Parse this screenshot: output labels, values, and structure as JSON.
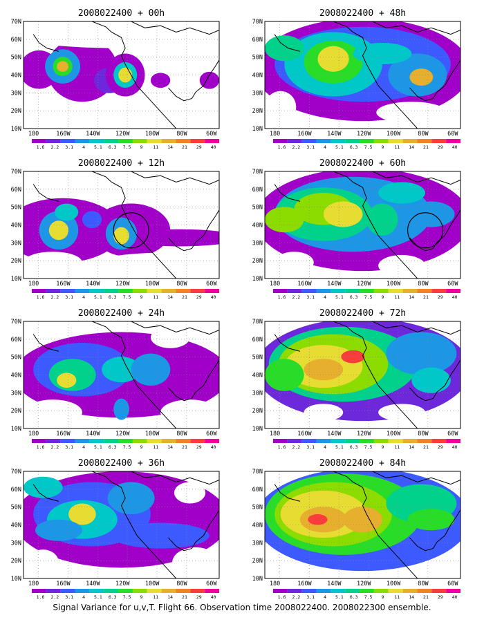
{
  "figure": {
    "footer": "Signal Variance for u,v,T. Flight 66. Observation time 2008022400. 2008022300 ensemble.",
    "y_ticks": [
      "70N",
      "60N",
      "50N",
      "40N",
      "30N",
      "20N",
      "10N"
    ],
    "x_ticks": [
      "180",
      "160W",
      "140W",
      "120W",
      "100W",
      "80W",
      "60W"
    ],
    "colorbar": {
      "labels": [
        "1.6",
        "2.2",
        "3.1",
        "4",
        "5.1",
        "6.3",
        "7.5",
        "9",
        "11",
        "14",
        "21",
        "29",
        "40"
      ],
      "colors": [
        "#a000c8",
        "#6e28dc",
        "#3c5aff",
        "#1e96e6",
        "#00c8c8",
        "#00d28c",
        "#28dc28",
        "#8cdc00",
        "#e6dc32",
        "#e6af2d",
        "#f08228",
        "#fa3c3c",
        "#f0009c"
      ]
    },
    "panels": [
      {
        "id": "p00",
        "title": "2008022400 + 00h",
        "lead_hours": 0
      },
      {
        "id": "p12",
        "title": "2008022400 + 12h",
        "lead_hours": 12
      },
      {
        "id": "p24",
        "title": "2008022400 + 24h",
        "lead_hours": 24
      },
      {
        "id": "p36",
        "title": "2008022400 + 36h",
        "lead_hours": 36
      },
      {
        "id": "p48",
        "title": "2008022400 + 48h",
        "lead_hours": 48
      },
      {
        "id": "p60",
        "title": "2008022400 + 60h",
        "lead_hours": 60
      },
      {
        "id": "p72",
        "title": "2008022400 + 72h",
        "lead_hours": 72
      },
      {
        "id": "p84",
        "title": "2008022400 + 84h",
        "lead_hours": 84
      }
    ]
  }
}
